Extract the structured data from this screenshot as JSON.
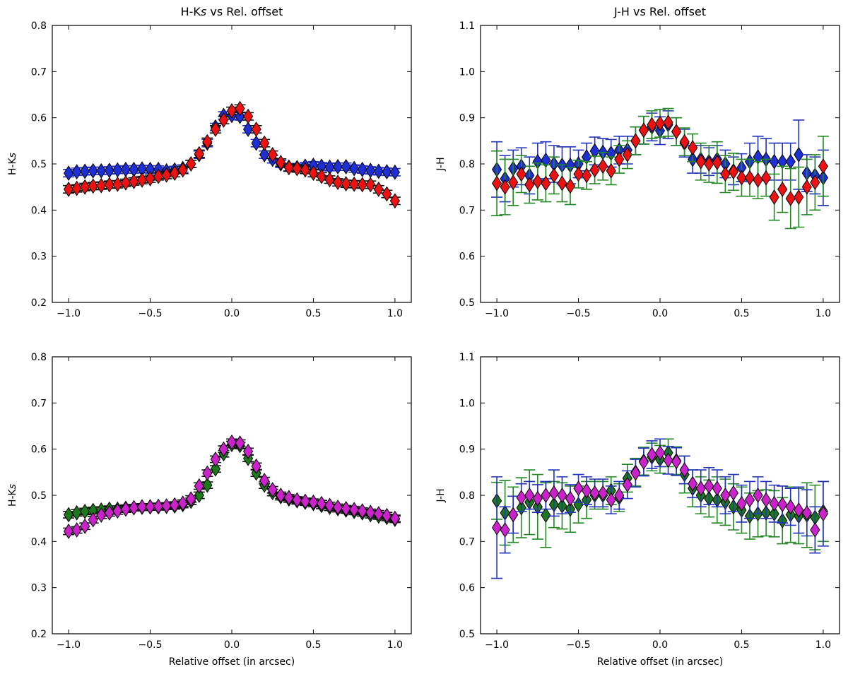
{
  "chart_data": [
    {
      "type": "scatter",
      "title": "H-Ks vs Rel. offset",
      "xlabel": "",
      "ylabel": "H-Ks",
      "xlim": [
        -1.1,
        1.1
      ],
      "ylim": [
        0.2,
        0.8
      ],
      "xticks": [
        -1.0,
        -0.5,
        0.0,
        0.5,
        1.0
      ],
      "xtick_labels": [
        "−1.0",
        "−0.5",
        "0.0",
        "0.5",
        "1.0"
      ],
      "yticks": [
        0.2,
        0.3,
        0.4,
        0.5,
        0.6,
        0.7,
        0.8
      ],
      "ytick_labels": [
        "0.2",
        "0.3",
        "0.4",
        "0.5",
        "0.6",
        "0.7",
        "0.8"
      ],
      "marker": "diamond",
      "x": [
        -1.0,
        -0.95,
        -0.9,
        -0.85,
        -0.8,
        -0.75,
        -0.7,
        -0.65,
        -0.6,
        -0.55,
        -0.5,
        -0.45,
        -0.4,
        -0.35,
        -0.3,
        -0.25,
        -0.2,
        -0.15,
        -0.1,
        -0.05,
        0.0,
        0.05,
        0.1,
        0.15,
        0.2,
        0.25,
        0.3,
        0.35,
        0.4,
        0.45,
        0.5,
        0.55,
        0.6,
        0.65,
        0.7,
        0.75,
        0.8,
        0.85,
        0.9,
        0.95,
        1.0
      ],
      "series": [
        {
          "color": "#1f2fd6",
          "err_color": "#1f2fd6",
          "values": [
            0.48,
            0.483,
            0.484,
            0.485,
            0.485,
            0.486,
            0.487,
            0.488,
            0.488,
            0.489,
            0.488,
            0.488,
            0.485,
            0.487,
            0.49,
            0.5,
            0.52,
            0.545,
            0.58,
            0.605,
            0.605,
            0.603,
            0.575,
            0.545,
            0.52,
            0.51,
            0.5,
            0.493,
            0.492,
            0.495,
            0.497,
            0.495,
            0.493,
            0.494,
            0.494,
            0.49,
            0.488,
            0.486,
            0.484,
            0.483,
            0.482
          ],
          "errors": [
            0.008,
            0.008,
            0.008,
            0.008,
            0.008,
            0.008,
            0.008,
            0.008,
            0.008,
            0.008,
            0.008,
            0.008,
            0.008,
            0.008,
            0.008,
            0.008,
            0.008,
            0.008,
            0.008,
            0.008,
            0.008,
            0.008,
            0.008,
            0.008,
            0.008,
            0.008,
            0.008,
            0.008,
            0.008,
            0.008,
            0.008,
            0.008,
            0.008,
            0.008,
            0.008,
            0.008,
            0.008,
            0.008,
            0.008,
            0.008,
            0.008
          ]
        },
        {
          "color": "#ee1111",
          "err_color": "#111111",
          "values": [
            0.445,
            0.447,
            0.45,
            0.452,
            0.453,
            0.455,
            0.456,
            0.459,
            0.462,
            0.465,
            0.468,
            0.473,
            0.476,
            0.48,
            0.487,
            0.5,
            0.522,
            0.548,
            0.575,
            0.595,
            0.615,
            0.62,
            0.603,
            0.575,
            0.545,
            0.52,
            0.503,
            0.492,
            0.49,
            0.487,
            0.48,
            0.473,
            0.466,
            0.46,
            0.457,
            0.456,
            0.455,
            0.455,
            0.445,
            0.435,
            0.42
          ],
          "errors": [
            0.008,
            0.008,
            0.008,
            0.008,
            0.008,
            0.008,
            0.008,
            0.008,
            0.008,
            0.008,
            0.008,
            0.008,
            0.008,
            0.008,
            0.008,
            0.008,
            0.008,
            0.008,
            0.008,
            0.008,
            0.008,
            0.008,
            0.008,
            0.008,
            0.008,
            0.008,
            0.008,
            0.008,
            0.008,
            0.008,
            0.008,
            0.008,
            0.008,
            0.008,
            0.008,
            0.008,
            0.008,
            0.008,
            0.008,
            0.008,
            0.008
          ]
        }
      ]
    },
    {
      "type": "scatter",
      "title": "J-H vs Rel. offset",
      "xlabel": "",
      "ylabel": "J-H",
      "xlim": [
        -1.1,
        1.1
      ],
      "ylim": [
        0.5,
        1.1
      ],
      "xticks": [
        -1.0,
        -0.5,
        0.0,
        0.5,
        1.0
      ],
      "xtick_labels": [
        "−1.0",
        "−0.5",
        "0.0",
        "0.5",
        "1.0"
      ],
      "yticks": [
        0.5,
        0.6,
        0.7,
        0.8,
        0.9,
        1.0,
        1.1
      ],
      "ytick_labels": [
        "0.5",
        "0.6",
        "0.7",
        "0.8",
        "0.9",
        "1.0",
        "1.1"
      ],
      "marker": "diamond",
      "x": [
        -1.0,
        -0.95,
        -0.9,
        -0.85,
        -0.8,
        -0.75,
        -0.7,
        -0.65,
        -0.6,
        -0.55,
        -0.5,
        -0.45,
        -0.4,
        -0.35,
        -0.3,
        -0.25,
        -0.2,
        -0.15,
        -0.1,
        -0.05,
        0.0,
        0.05,
        0.1,
        0.15,
        0.2,
        0.25,
        0.3,
        0.35,
        0.4,
        0.45,
        0.5,
        0.55,
        0.6,
        0.65,
        0.7,
        0.75,
        0.8,
        0.85,
        0.9,
        0.95,
        1.0
      ],
      "series": [
        {
          "color": "#1f2fd6",
          "err_color": "#2233bb",
          "values": [
            0.788,
            0.768,
            0.79,
            0.795,
            0.775,
            0.805,
            0.808,
            0.8,
            0.797,
            0.797,
            0.8,
            0.815,
            0.828,
            0.825,
            0.823,
            0.83,
            0.83,
            0.85,
            0.873,
            0.88,
            0.872,
            0.885,
            0.87,
            0.845,
            0.81,
            0.81,
            0.805,
            0.81,
            0.8,
            0.785,
            0.792,
            0.805,
            0.815,
            0.81,
            0.805,
            0.805,
            0.805,
            0.82,
            0.78,
            0.775,
            0.77
          ],
          "errors": [
            0.06,
            0.05,
            0.04,
            0.04,
            0.04,
            0.04,
            0.04,
            0.04,
            0.04,
            0.04,
            0.03,
            0.03,
            0.03,
            0.03,
            0.03,
            0.03,
            0.03,
            0.03,
            0.03,
            0.03,
            0.03,
            0.03,
            0.03,
            0.03,
            0.03,
            0.03,
            0.03,
            0.03,
            0.03,
            0.03,
            0.03,
            0.04,
            0.045,
            0.045,
            0.04,
            0.04,
            0.04,
            0.075,
            0.04,
            0.04,
            0.06
          ]
        },
        {
          "color": "#ee1111",
          "err_color": "#228822",
          "values": [
            0.758,
            0.75,
            0.76,
            0.778,
            0.755,
            0.762,
            0.758,
            0.775,
            0.758,
            0.752,
            0.778,
            0.775,
            0.787,
            0.795,
            0.785,
            0.81,
            0.82,
            0.85,
            0.873,
            0.885,
            0.888,
            0.89,
            0.87,
            0.848,
            0.835,
            0.805,
            0.8,
            0.803,
            0.778,
            0.783,
            0.77,
            0.77,
            0.765,
            0.77,
            0.728,
            0.745,
            0.725,
            0.728,
            0.75,
            0.76,
            0.795
          ],
          "errors": [
            0.07,
            0.06,
            0.05,
            0.04,
            0.04,
            0.04,
            0.04,
            0.04,
            0.04,
            0.04,
            0.03,
            0.03,
            0.03,
            0.03,
            0.03,
            0.03,
            0.03,
            0.03,
            0.03,
            0.03,
            0.03,
            0.03,
            0.03,
            0.03,
            0.03,
            0.04,
            0.04,
            0.045,
            0.04,
            0.04,
            0.04,
            0.04,
            0.04,
            0.04,
            0.05,
            0.05,
            0.065,
            0.065,
            0.06,
            0.06,
            0.065
          ]
        }
      ]
    },
    {
      "type": "scatter",
      "title": "",
      "xlabel": "Relative offset (in arcsec)",
      "ylabel": "H-Ks",
      "xlim": [
        -1.1,
        1.1
      ],
      "ylim": [
        0.2,
        0.8
      ],
      "xticks": [
        -1.0,
        -0.5,
        0.0,
        0.5,
        1.0
      ],
      "xtick_labels": [
        "−1.0",
        "−0.5",
        "0.0",
        "0.5",
        "1.0"
      ],
      "yticks": [
        0.2,
        0.3,
        0.4,
        0.5,
        0.6,
        0.7,
        0.8
      ],
      "ytick_labels": [
        "0.2",
        "0.3",
        "0.4",
        "0.5",
        "0.6",
        "0.7",
        "0.8"
      ],
      "marker": "diamond",
      "x": [
        -1.0,
        -0.95,
        -0.9,
        -0.85,
        -0.8,
        -0.75,
        -0.7,
        -0.65,
        -0.6,
        -0.55,
        -0.5,
        -0.45,
        -0.4,
        -0.35,
        -0.3,
        -0.25,
        -0.2,
        -0.15,
        -0.1,
        -0.05,
        0.0,
        0.05,
        0.1,
        0.15,
        0.2,
        0.25,
        0.3,
        0.35,
        0.4,
        0.45,
        0.5,
        0.55,
        0.6,
        0.65,
        0.7,
        0.75,
        0.8,
        0.85,
        0.9,
        0.95,
        1.0
      ],
      "series": [
        {
          "color": "#1a7a1a",
          "err_color": "#111111",
          "values": [
            0.458,
            0.462,
            0.465,
            0.467,
            0.468,
            0.47,
            0.47,
            0.472,
            0.473,
            0.474,
            0.475,
            0.475,
            0.476,
            0.477,
            0.48,
            0.487,
            0.5,
            0.522,
            0.557,
            0.59,
            0.61,
            0.608,
            0.58,
            0.548,
            0.522,
            0.506,
            0.497,
            0.492,
            0.488,
            0.485,
            0.482,
            0.478,
            0.474,
            0.471,
            0.468,
            0.465,
            0.462,
            0.458,
            0.455,
            0.452,
            0.448
          ],
          "errors": [
            0.007,
            0.007,
            0.007,
            0.007,
            0.007,
            0.007,
            0.007,
            0.007,
            0.007,
            0.007,
            0.007,
            0.007,
            0.007,
            0.007,
            0.007,
            0.007,
            0.007,
            0.007,
            0.007,
            0.007,
            0.007,
            0.007,
            0.007,
            0.007,
            0.007,
            0.007,
            0.007,
            0.007,
            0.007,
            0.007,
            0.007,
            0.007,
            0.007,
            0.007,
            0.007,
            0.007,
            0.007,
            0.007,
            0.007,
            0.007,
            0.007
          ]
        },
        {
          "color": "#cc22cc",
          "err_color": "#111111",
          "values": [
            0.422,
            0.425,
            0.433,
            0.447,
            0.457,
            0.462,
            0.466,
            0.47,
            0.473,
            0.475,
            0.475,
            0.476,
            0.477,
            0.479,
            0.483,
            0.492,
            0.52,
            0.548,
            0.578,
            0.6,
            0.615,
            0.613,
            0.595,
            0.563,
            0.532,
            0.512,
            0.5,
            0.495,
            0.49,
            0.487,
            0.485,
            0.482,
            0.478,
            0.474,
            0.471,
            0.469,
            0.466,
            0.463,
            0.46,
            0.456,
            0.45
          ],
          "errors": [
            0.007,
            0.007,
            0.007,
            0.007,
            0.007,
            0.007,
            0.007,
            0.007,
            0.007,
            0.007,
            0.007,
            0.007,
            0.007,
            0.007,
            0.007,
            0.007,
            0.007,
            0.007,
            0.007,
            0.007,
            0.007,
            0.007,
            0.007,
            0.007,
            0.007,
            0.007,
            0.007,
            0.007,
            0.007,
            0.007,
            0.007,
            0.007,
            0.007,
            0.007,
            0.007,
            0.007,
            0.007,
            0.007,
            0.007,
            0.007,
            0.007
          ]
        }
      ]
    },
    {
      "type": "scatter",
      "title": "",
      "xlabel": "Relative offset (in arcsec)",
      "ylabel": "J-H",
      "xlim": [
        -1.1,
        1.1
      ],
      "ylim": [
        0.5,
        1.1
      ],
      "xticks": [
        -1.0,
        -0.5,
        0.0,
        0.5,
        1.0
      ],
      "xtick_labels": [
        "−1.0",
        "−0.5",
        "0.0",
        "0.5",
        "1.0"
      ],
      "yticks": [
        0.5,
        0.6,
        0.7,
        0.8,
        0.9,
        1.0,
        1.1
      ],
      "ytick_labels": [
        "0.5",
        "0.6",
        "0.7",
        "0.8",
        "0.9",
        "1.0",
        "1.1"
      ],
      "marker": "diamond",
      "x": [
        -1.0,
        -0.95,
        -0.9,
        -0.85,
        -0.8,
        -0.75,
        -0.7,
        -0.65,
        -0.6,
        -0.55,
        -0.5,
        -0.45,
        -0.4,
        -0.35,
        -0.3,
        -0.25,
        -0.2,
        -0.15,
        -0.1,
        -0.05,
        0.0,
        0.05,
        0.1,
        0.15,
        0.2,
        0.25,
        0.3,
        0.35,
        0.4,
        0.45,
        0.5,
        0.55,
        0.6,
        0.65,
        0.7,
        0.75,
        0.8,
        0.85,
        0.9,
        0.95,
        1.0
      ],
      "series": [
        {
          "color": "#1a7a1a",
          "err_color": "#228822",
          "values": [
            0.788,
            0.762,
            0.758,
            0.773,
            0.785,
            0.775,
            0.757,
            0.78,
            0.777,
            0.77,
            0.78,
            0.79,
            0.8,
            0.8,
            0.81,
            0.795,
            0.837,
            0.85,
            0.874,
            0.883,
            0.878,
            0.892,
            0.875,
            0.845,
            0.815,
            0.8,
            0.793,
            0.79,
            0.785,
            0.775,
            0.768,
            0.755,
            0.76,
            0.762,
            0.76,
            0.745,
            0.758,
            0.755,
            0.757,
            0.752,
            0.765
          ],
          "errors": [
            0.04,
            0.07,
            0.06,
            0.065,
            0.07,
            0.07,
            0.07,
            0.05,
            0.05,
            0.05,
            0.04,
            0.04,
            0.03,
            0.03,
            0.03,
            0.03,
            0.03,
            0.03,
            0.03,
            0.03,
            0.03,
            0.03,
            0.03,
            0.04,
            0.04,
            0.04,
            0.04,
            0.05,
            0.05,
            0.05,
            0.05,
            0.05,
            0.05,
            0.05,
            0.05,
            0.05,
            0.06,
            0.06,
            0.07,
            0.07,
            0.065
          ]
        },
        {
          "color": "#cc22cc",
          "err_color": "#2233bb",
          "values": [
            0.73,
            0.725,
            0.758,
            0.795,
            0.8,
            0.793,
            0.8,
            0.805,
            0.8,
            0.793,
            0.815,
            0.81,
            0.805,
            0.805,
            0.79,
            0.8,
            0.823,
            0.848,
            0.872,
            0.888,
            0.892,
            0.876,
            0.873,
            0.855,
            0.825,
            0.815,
            0.82,
            0.815,
            0.8,
            0.805,
            0.782,
            0.79,
            0.8,
            0.79,
            0.782,
            0.78,
            0.775,
            0.768,
            0.762,
            0.725,
            0.76
          ],
          "errors": [
            0.11,
            0.05,
            0.04,
            0.03,
            0.03,
            0.03,
            0.03,
            0.05,
            0.04,
            0.03,
            0.03,
            0.03,
            0.03,
            0.03,
            0.03,
            0.03,
            0.03,
            0.03,
            0.03,
            0.03,
            0.03,
            0.03,
            0.03,
            0.03,
            0.03,
            0.04,
            0.04,
            0.04,
            0.04,
            0.04,
            0.04,
            0.04,
            0.04,
            0.04,
            0.04,
            0.04,
            0.04,
            0.05,
            0.05,
            0.05,
            0.07
          ]
        }
      ]
    }
  ]
}
